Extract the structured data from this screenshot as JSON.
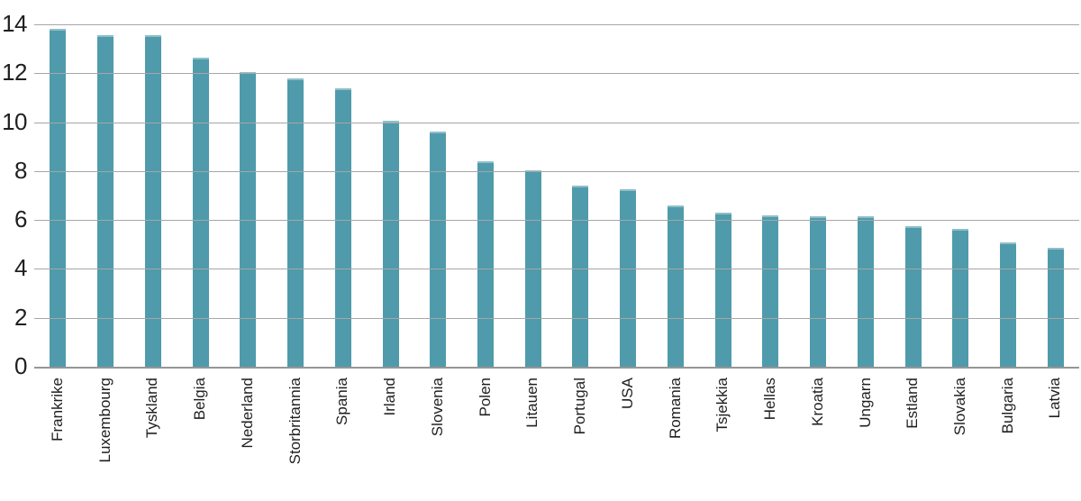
{
  "chart_data": {
    "type": "bar",
    "title": "",
    "xlabel": "",
    "ylabel": "",
    "categories": [
      "Frankrike",
      "Luxembourg",
      "Tyskland",
      "Belgia",
      "Nederland",
      "Storbritannia",
      "Spania",
      "Irland",
      "Slovenia",
      "Polen",
      "Litauen",
      "Portugal",
      "USA",
      "Romania",
      "Tsjekkia",
      "Hellas",
      "Kroatia",
      "Ungarn",
      "Estland",
      "Slovakia",
      "Bulgaria",
      "Latvia"
    ],
    "values": [
      13.8,
      13.55,
      13.55,
      12.65,
      12.05,
      11.8,
      11.4,
      10.05,
      9.6,
      8.4,
      8.05,
      7.4,
      7.25,
      6.6,
      6.3,
      6.2,
      6.15,
      6.15,
      5.75,
      5.65,
      5.1,
      4.85
    ],
    "ylim": [
      0,
      14
    ],
    "yticks": [
      0,
      2,
      4,
      6,
      8,
      10,
      12,
      14
    ],
    "grid": true,
    "legend": "none",
    "colors": {
      "bar_fill": "#4f9bab",
      "bar_top_edge": "#8fbfc9",
      "gridline": "#a6a6a6",
      "zero_axis": "#969696",
      "text": "#1f1f1f",
      "background": "#ffffff"
    }
  }
}
